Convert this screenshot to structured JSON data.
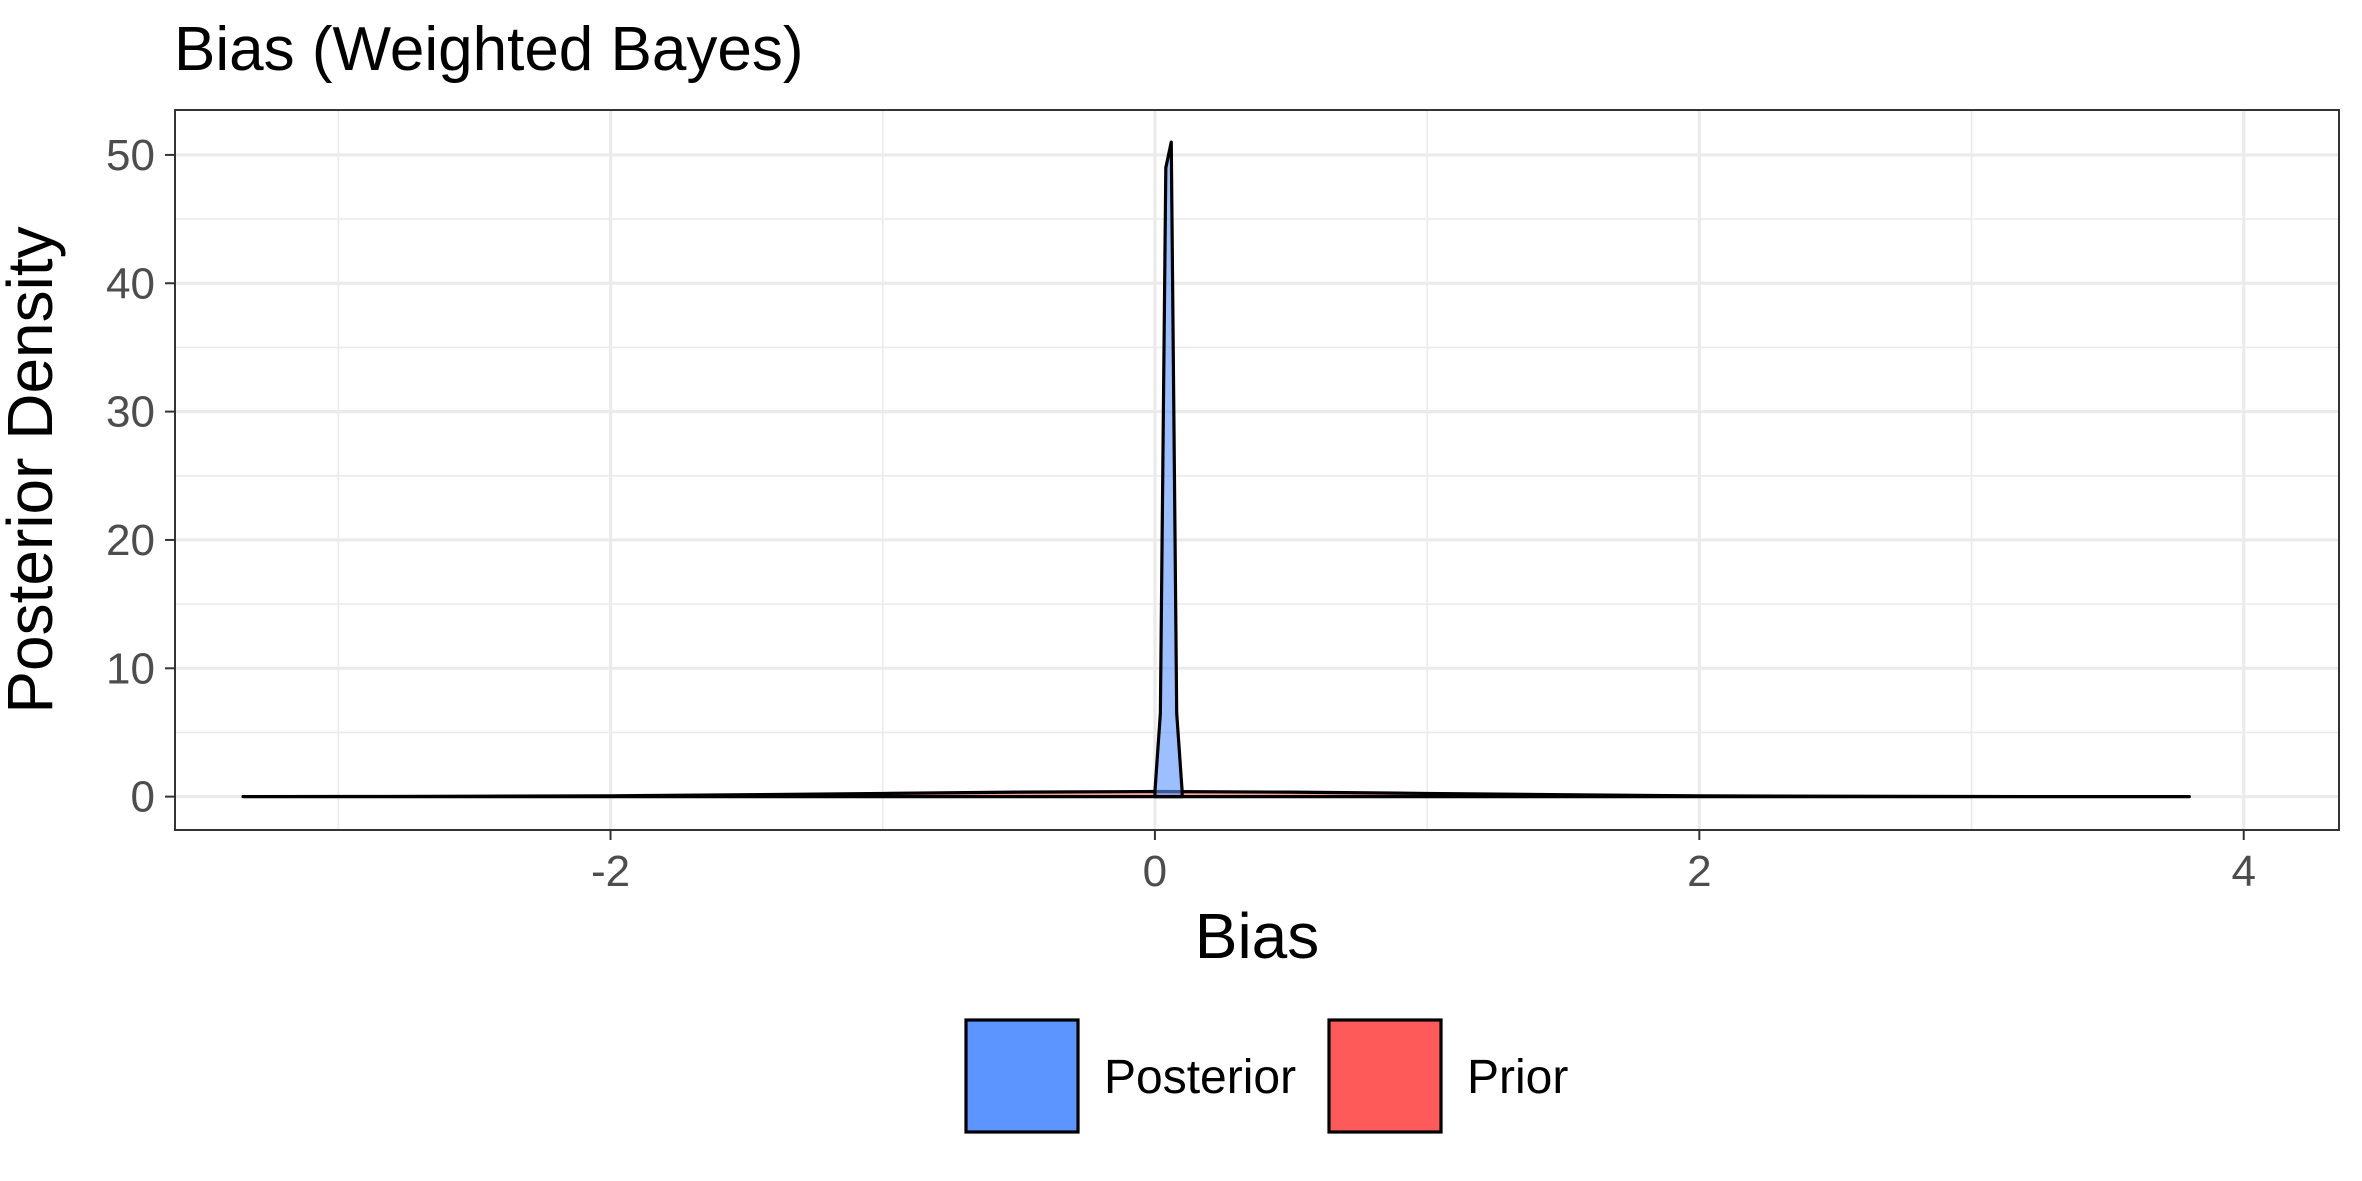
{
  "chart_data": {
    "type": "area",
    "title": "Bias (Weighted Bayes)",
    "xlabel": "Bias",
    "ylabel": "Posterior Density",
    "xlim": [
      -3.6,
      4.35
    ],
    "ylim": [
      -2.6,
      53.5
    ],
    "x_ticks": [
      -2,
      0,
      2,
      4
    ],
    "x_tick_labels": [
      "-2",
      "0",
      "2",
      "4"
    ],
    "y_ticks": [
      0,
      10,
      20,
      30,
      40,
      50
    ],
    "y_tick_labels": [
      "0",
      "10",
      "20",
      "30",
      "40",
      "50"
    ],
    "grid": true,
    "legend_position": "bottom",
    "series": [
      {
        "name": "Posterior",
        "color": "#5c95ff",
        "x": [
          0.0,
          0.02,
          0.04,
          0.06,
          0.08,
          0.1
        ],
        "y": [
          0.4,
          6.5,
          49.0,
          51.0,
          6.5,
          0.4
        ]
      },
      {
        "name": "Prior",
        "color": "#ff5a5a",
        "x": [
          -3.35,
          -3.0,
          -2.5,
          -2.0,
          -1.5,
          -1.0,
          -0.5,
          0.0,
          0.5,
          1.0,
          1.5,
          2.0,
          2.5,
          3.0,
          3.5,
          3.8
        ],
        "y": [
          0.0,
          0.01,
          0.03,
          0.06,
          0.15,
          0.25,
          0.35,
          0.4,
          0.35,
          0.25,
          0.15,
          0.06,
          0.03,
          0.01,
          0.0,
          0.0
        ]
      }
    ]
  }
}
